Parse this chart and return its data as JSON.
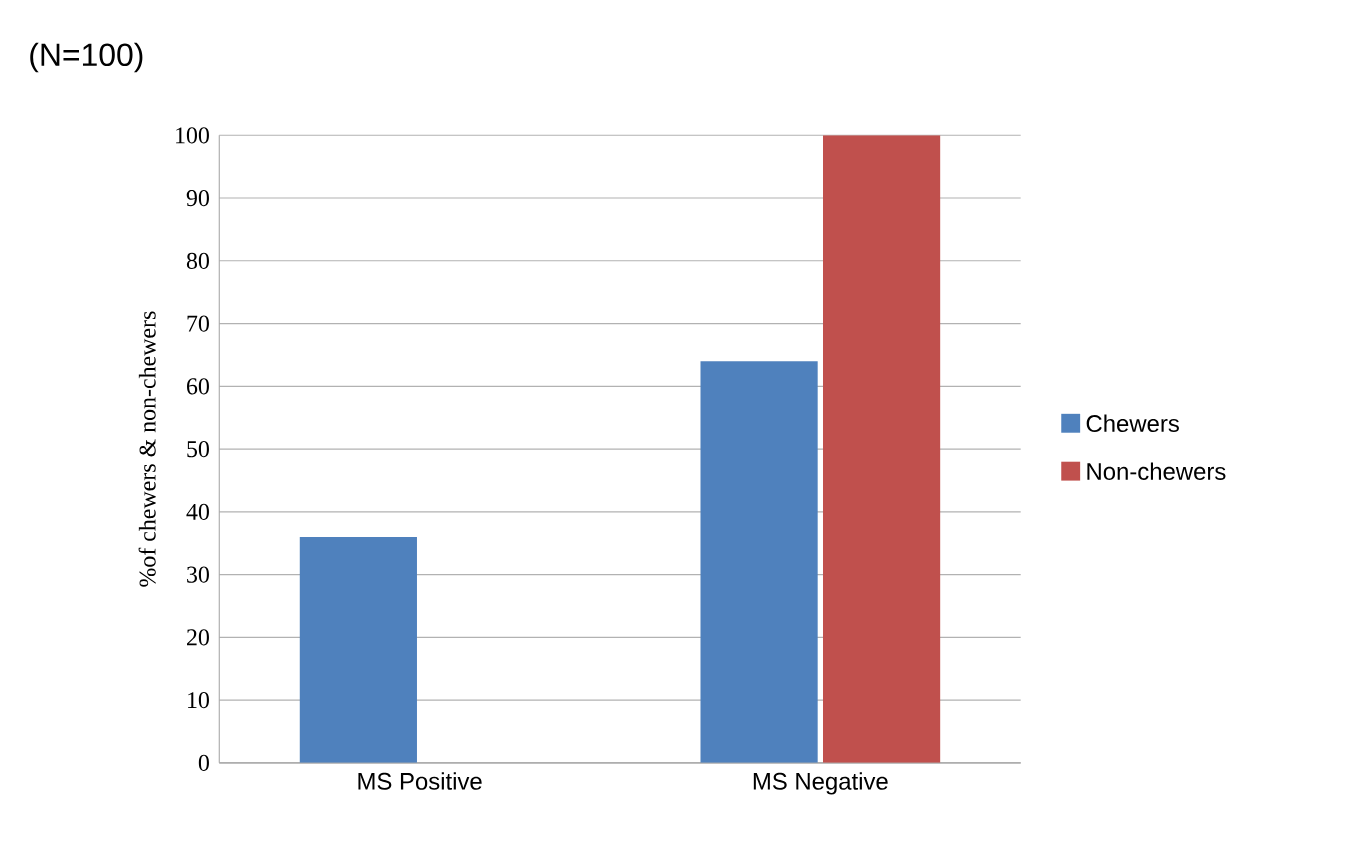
{
  "chart_data": {
    "type": "bar",
    "title": "(N=100)",
    "ylabel": "%of chewers & non-chewers",
    "categories": [
      "MS Positive",
      "MS Negative"
    ],
    "series": [
      {
        "name": "Chewers",
        "color": "#4f81bd",
        "values": [
          36,
          64
        ]
      },
      {
        "name": "Non-chewers",
        "color": "#c0504d",
        "values": [
          0,
          100
        ]
      }
    ],
    "ylim": [
      0,
      100
    ],
    "yticks": [
      0,
      10,
      20,
      30,
      40,
      50,
      60,
      70,
      80,
      90,
      100
    ],
    "grid": "y",
    "legend": "right"
  }
}
